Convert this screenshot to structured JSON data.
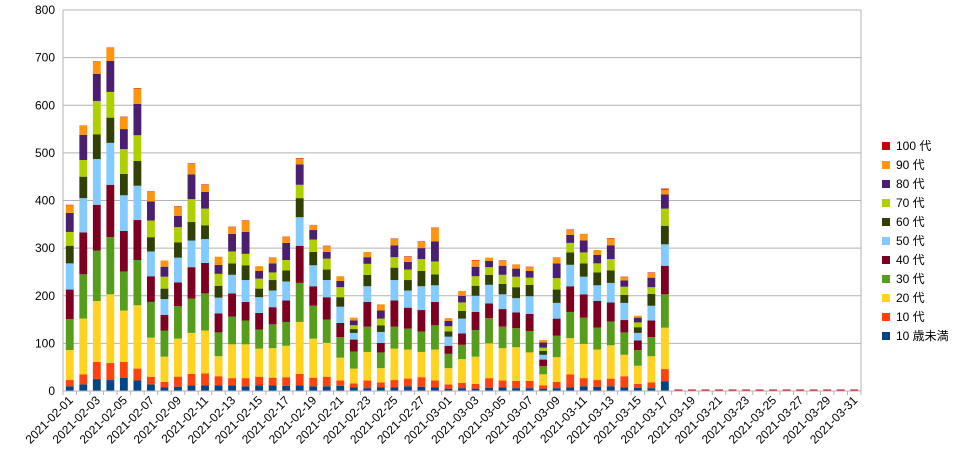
{
  "chart_data": {
    "type": "bar",
    "stacked": true,
    "ylim": [
      0,
      800
    ],
    "yticks": [
      0,
      100,
      200,
      300,
      400,
      500,
      600,
      700,
      800
    ],
    "grid": true,
    "legend_position": "right",
    "x": [
      "2021-02-01",
      "2021-02-02",
      "2021-02-03",
      "2021-02-04",
      "2021-02-05",
      "2021-02-06",
      "2021-02-07",
      "2021-02-08",
      "2021-02-09",
      "2021-02-10",
      "2021-02-11",
      "2021-02-12",
      "2021-02-13",
      "2021-02-14",
      "2021-02-15",
      "2021-02-16",
      "2021-02-17",
      "2021-02-18",
      "2021-02-19",
      "2021-02-20",
      "2021-02-21",
      "2021-02-22",
      "2021-02-23",
      "2021-02-24",
      "2021-02-25",
      "2021-02-26",
      "2021-02-27",
      "2021-02-28",
      "2021-03-01",
      "2021-03-02",
      "2021-03-03",
      "2021-03-04",
      "2021-03-05",
      "2021-03-06",
      "2021-03-07",
      "2021-03-08",
      "2021-03-09",
      "2021-03-10",
      "2021-03-11",
      "2021-03-12",
      "2021-03-13",
      "2021-03-14",
      "2021-03-15",
      "2021-03-16",
      "2021-03-17",
      "2021-03-18",
      "2021-03-19",
      "2021-03-20",
      "2021-03-21",
      "2021-03-22",
      "2021-03-23",
      "2021-03-24",
      "2021-03-25",
      "2021-03-26",
      "2021-03-27",
      "2021-03-28",
      "2021-03-29",
      "2021-03-30",
      "2021-03-31"
    ],
    "x_tick_labels": [
      "2021-02-01",
      "2021-02-03",
      "2021-02-05",
      "2021-02-07",
      "2021-02-09",
      "2021-02-11",
      "2021-02-13",
      "2021-02-15",
      "2021-02-17",
      "2021-02-19",
      "2021-02-21",
      "2021-02-23",
      "2021-02-25",
      "2021-02-27",
      "2021-03-01",
      "2021-03-03",
      "2021-03-05",
      "2021-03-07",
      "2021-03-09",
      "2021-03-11",
      "2021-03-13",
      "2021-03-15",
      "2021-03-17",
      "2021-03-19",
      "2021-03-21",
      "2021-03-23",
      "2021-03-25",
      "2021-03-27",
      "2021-03-29",
      "2021-03-31"
    ],
    "series": [
      {
        "name": "10 歳未満",
        "color": "#004586",
        "values": [
          10,
          14,
          25,
          23,
          28,
          22,
          14,
          8,
          9,
          12,
          12,
          12,
          12,
          10,
          12,
          12,
          11,
          12,
          10,
          10,
          11,
          8,
          6,
          8,
          8,
          10,
          9,
          8,
          5,
          6,
          5,
          7,
          8,
          6,
          6,
          5,
          6,
          8,
          10,
          9,
          10,
          8,
          7,
          6,
          20,
          0,
          0,
          0,
          0,
          0,
          0,
          0,
          0,
          0,
          0,
          0,
          0,
          0,
          0
        ]
      },
      {
        "name": "10 代",
        "color": "#ff420e",
        "values": [
          13,
          21,
          36,
          36,
          33,
          25,
          16,
          11,
          21,
          24,
          25,
          19,
          15,
          17,
          18,
          16,
          18,
          24,
          18,
          20,
          11,
          8,
          16,
          10,
          15,
          16,
          20,
          14,
          9,
          11,
          10,
          20,
          14,
          15,
          15,
          7,
          13,
          27,
          17,
          14,
          16,
          23,
          8,
          12,
          26,
          0,
          0,
          0,
          0,
          0,
          0,
          0,
          0,
          0,
          0,
          0,
          0,
          0,
          0
        ]
      },
      {
        "name": "20 代",
        "color": "#ffd320",
        "values": [
          63,
          117,
          128,
          144,
          108,
          133,
          82,
          53,
          80,
          86,
          90,
          42,
          71,
          71,
          59,
          62,
          66,
          109,
          82,
          71,
          48,
          31,
          60,
          30,
          66,
          61,
          53,
          65,
          34,
          50,
          57,
          73,
          68,
          71,
          60,
          23,
          52,
          76,
          72,
          64,
          70,
          45,
          38,
          55,
          87,
          0,
          0,
          0,
          0,
          0,
          0,
          0,
          0,
          0,
          0,
          0,
          0,
          0,
          0
        ]
      },
      {
        "name": "30 代",
        "color": "#579d1c",
        "values": [
          65,
          93,
          106,
          120,
          82,
          95,
          75,
          55,
          68,
          72,
          78,
          50,
          58,
          50,
          40,
          50,
          50,
          82,
          69,
          49,
          43,
          36,
          53,
          33,
          46,
          44,
          43,
          51,
          30,
          30,
          56,
          53,
          45,
          40,
          45,
          17,
          45,
          55,
          55,
          46,
          50,
          47,
          33,
          40,
          70,
          0,
          0,
          0,
          0,
          0,
          0,
          0,
          0,
          0,
          0,
          0,
          0,
          0,
          0
        ]
      },
      {
        "name": "40 代",
        "color": "#7e0021",
        "values": [
          62,
          88,
          96,
          110,
          85,
          84,
          54,
          33,
          50,
          66,
          64,
          40,
          49,
          39,
          35,
          36,
          45,
          78,
          41,
          47,
          30,
          25,
          52,
          20,
          55,
          44,
          45,
          49,
          17,
          24,
          38,
          31,
          37,
          33,
          36,
          14,
          36,
          54,
          49,
          56,
          40,
          26,
          20,
          35,
          60,
          0,
          0,
          0,
          0,
          0,
          0,
          0,
          0,
          0,
          0,
          0,
          0,
          0,
          0
        ]
      },
      {
        "name": "50 代",
        "color": "#83caff",
        "values": [
          55,
          72,
          96,
          88,
          75,
          72,
          52,
          33,
          52,
          56,
          50,
          33,
          39,
          46,
          33,
          35,
          40,
          60,
          44,
          36,
          34,
          14,
          33,
          23,
          43,
          36,
          50,
          35,
          19,
          31,
          34,
          39,
          31,
          30,
          37,
          10,
          33,
          45,
          37,
          33,
          41,
          36,
          16,
          31,
          45,
          0,
          0,
          0,
          0,
          0,
          0,
          0,
          0,
          0,
          0,
          0,
          0,
          0,
          0
        ]
      },
      {
        "name": "60 代",
        "color": "#314004",
        "values": [
          37,
          45,
          52,
          53,
          45,
          52,
          30,
          22,
          32,
          39,
          29,
          25,
          24,
          31,
          18,
          22,
          23,
          40,
          28,
          22,
          20,
          8,
          24,
          14,
          26,
          22,
          32,
          23,
          11,
          16,
          21,
          21,
          22,
          23,
          24,
          8,
          28,
          26,
          28,
          27,
          26,
          17,
          12,
          25,
          39,
          0,
          0,
          0,
          0,
          0,
          0,
          0,
          0,
          0,
          0,
          0,
          0,
          0,
          0
        ]
      },
      {
        "name": "70 代",
        "color": "#aecf00",
        "values": [
          29,
          35,
          70,
          54,
          52,
          54,
          35,
          25,
          32,
          48,
          35,
          25,
          25,
          24,
          21,
          16,
          22,
          28,
          26,
          23,
          21,
          8,
          23,
          14,
          22,
          22,
          25,
          27,
          11,
          18,
          20,
          16,
          19,
          22,
          15,
          7,
          24,
          20,
          23,
          19,
          24,
          17,
          10,
          14,
          36,
          0,
          0,
          0,
          0,
          0,
          0,
          0,
          0,
          0,
          0,
          0,
          0,
          0,
          0
        ]
      },
      {
        "name": "80 代",
        "color": "#4b1f6f",
        "values": [
          40,
          53,
          57,
          65,
          42,
          66,
          40,
          21,
          24,
          52,
          35,
          19,
          37,
          46,
          16,
          19,
          36,
          43,
          20,
          14,
          13,
          10,
          14,
          17,
          25,
          16,
          23,
          42,
          11,
          14,
          20,
          13,
          19,
          17,
          14,
          11,
          31,
          17,
          25,
          18,
          29,
          13,
          10,
          20,
          30,
          0,
          0,
          0,
          0,
          0,
          0,
          0,
          0,
          0,
          0,
          0,
          0,
          0,
          0
        ]
      },
      {
        "name": "90 代",
        "color": "#ff950e",
        "values": [
          16,
          20,
          25,
          27,
          25,
          32,
          20,
          13,
          19,
          22,
          15,
          17,
          14,
          23,
          10,
          11,
          12,
          12,
          11,
          12,
          10,
          6,
          11,
          13,
          13,
          11,
          13,
          28,
          6,
          10,
          13,
          7,
          10,
          9,
          8,
          5,
          13,
          10,
          14,
          10,
          14,
          7,
          4,
          10,
          10,
          0,
          0,
          0,
          0,
          0,
          0,
          0,
          0,
          0,
          0,
          0,
          0,
          0,
          0
        ]
      },
      {
        "name": "100 代",
        "color": "#c5000b",
        "values": [
          1,
          0,
          1,
          1,
          1,
          1,
          1,
          0,
          1,
          1,
          1,
          0,
          1,
          1,
          0,
          1,
          1,
          1,
          0,
          1,
          0,
          0,
          0,
          0,
          1,
          1,
          1,
          1,
          0,
          0,
          1,
          0,
          1,
          0,
          1,
          0,
          0,
          1,
          0,
          0,
          1,
          1,
          0,
          1,
          2,
          0,
          0,
          0,
          0,
          0,
          0,
          0,
          0,
          0,
          0,
          0,
          0,
          0,
          0
        ]
      }
    ],
    "legend_order": [
      "100 代",
      "90 代",
      "80 代",
      "70 代",
      "60 代",
      "50 代",
      "40 代",
      "30 代",
      "20 代",
      "10 代",
      "10 歳未満"
    ]
  }
}
